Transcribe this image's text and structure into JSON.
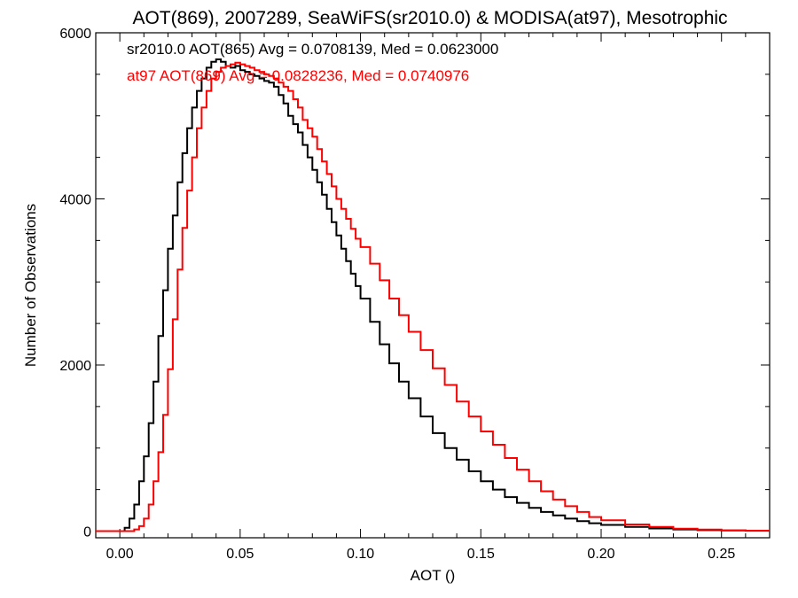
{
  "chart_data": {
    "type": "line",
    "step": true,
    "title": "AOT(869), 2007289, SeaWiFS(sr2010.0) & MODISA(at97), Mesotrophic",
    "xlabel": "AOT ()",
    "ylabel": "Number of Observations",
    "xlim": [
      -0.01,
      0.27
    ],
    "ylim": [
      -80,
      6000
    ],
    "x_ticks": [
      0.0,
      0.05,
      0.1,
      0.15,
      0.2,
      0.25
    ],
    "x_tick_labels": [
      "0.00",
      "0.05",
      "0.10",
      "0.15",
      "0.20",
      "0.25"
    ],
    "y_ticks": [
      0,
      2000,
      4000,
      6000
    ],
    "y_tick_labels": [
      "0",
      "2000",
      "4000",
      "6000"
    ],
    "grid": false,
    "legend": "top-left",
    "series": [
      {
        "name": "sr2010.0 AOT(865) Avg = 0.0708139, Med = 0.0623000",
        "color": "#000000",
        "x": [
          -0.01,
          0.0,
          0.002,
          0.004,
          0.006,
          0.008,
          0.01,
          0.012,
          0.014,
          0.016,
          0.018,
          0.02,
          0.022,
          0.024,
          0.026,
          0.028,
          0.03,
          0.032,
          0.034,
          0.036,
          0.038,
          0.04,
          0.042,
          0.044,
          0.046,
          0.048,
          0.05,
          0.052,
          0.054,
          0.056,
          0.058,
          0.06,
          0.062,
          0.064,
          0.066,
          0.068,
          0.07,
          0.072,
          0.074,
          0.076,
          0.078,
          0.08,
          0.082,
          0.084,
          0.086,
          0.088,
          0.09,
          0.092,
          0.094,
          0.096,
          0.098,
          0.1,
          0.104,
          0.108,
          0.112,
          0.116,
          0.12,
          0.125,
          0.13,
          0.135,
          0.14,
          0.145,
          0.15,
          0.155,
          0.16,
          0.165,
          0.17,
          0.175,
          0.18,
          0.185,
          0.19,
          0.195,
          0.2,
          0.21,
          0.22,
          0.23,
          0.24,
          0.25,
          0.26,
          0.27
        ],
        "y": [
          0,
          0,
          40,
          150,
          320,
          600,
          900,
          1300,
          1800,
          2350,
          2900,
          3400,
          3800,
          4200,
          4550,
          4850,
          5100,
          5300,
          5450,
          5580,
          5650,
          5680,
          5650,
          5600,
          5580,
          5600,
          5550,
          5530,
          5500,
          5480,
          5450,
          5420,
          5400,
          5350,
          5250,
          5150,
          5000,
          4900,
          4800,
          4650,
          4500,
          4350,
          4200,
          4050,
          3880,
          3720,
          3560,
          3400,
          3250,
          3100,
          2950,
          2800,
          2520,
          2250,
          2020,
          1800,
          1600,
          1380,
          1180,
          1000,
          860,
          720,
          600,
          500,
          410,
          340,
          280,
          230,
          190,
          150,
          120,
          95,
          75,
          50,
          32,
          20,
          12,
          7,
          4,
          2
        ]
      },
      {
        "name": "at97 AOT(869) Avg = 0.0828236, Med = 0.0740976",
        "color": "#ff0000",
        "x": [
          -0.01,
          0.004,
          0.006,
          0.008,
          0.01,
          0.012,
          0.014,
          0.016,
          0.018,
          0.02,
          0.022,
          0.024,
          0.026,
          0.028,
          0.03,
          0.032,
          0.034,
          0.036,
          0.038,
          0.04,
          0.042,
          0.044,
          0.046,
          0.048,
          0.05,
          0.052,
          0.054,
          0.056,
          0.058,
          0.06,
          0.062,
          0.064,
          0.066,
          0.068,
          0.07,
          0.072,
          0.074,
          0.076,
          0.078,
          0.08,
          0.082,
          0.084,
          0.086,
          0.088,
          0.09,
          0.092,
          0.094,
          0.096,
          0.098,
          0.1,
          0.104,
          0.108,
          0.112,
          0.116,
          0.12,
          0.125,
          0.13,
          0.135,
          0.14,
          0.145,
          0.15,
          0.155,
          0.16,
          0.165,
          0.17,
          0.175,
          0.18,
          0.185,
          0.19,
          0.195,
          0.2,
          0.21,
          0.22,
          0.23,
          0.24,
          0.25,
          0.26,
          0.27
        ],
        "y": [
          0,
          0,
          20,
          60,
          150,
          320,
          600,
          950,
          1400,
          1950,
          2550,
          3150,
          3650,
          4100,
          4500,
          4850,
          5100,
          5300,
          5450,
          5530,
          5580,
          5600,
          5620,
          5640,
          5620,
          5600,
          5580,
          5550,
          5530,
          5500,
          5480,
          5450,
          5400,
          5350,
          5300,
          5200,
          5100,
          4950,
          4850,
          4750,
          4600,
          4450,
          4300,
          4150,
          4000,
          3880,
          3760,
          3640,
          3520,
          3420,
          3220,
          3020,
          2800,
          2600,
          2400,
          2180,
          1960,
          1760,
          1560,
          1380,
          1200,
          1040,
          880,
          740,
          600,
          480,
          380,
          300,
          230,
          170,
          130,
          80,
          50,
          30,
          18,
          10,
          5,
          2
        ]
      }
    ]
  }
}
